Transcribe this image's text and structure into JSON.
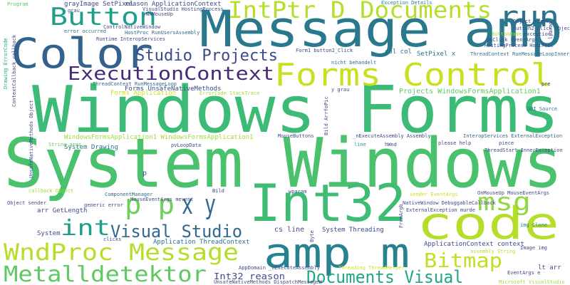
{
  "words": [
    "System Windows",
    "Windows Forms",
    "Message amp",
    "Int32",
    "code",
    "amp m",
    "Color",
    "Forms Control",
    "IntPtr D Documents",
    "run",
    "Button",
    "ExecutionContext",
    "Studio Projects",
    "p p",
    "x y",
    "msg",
    "int",
    "Visual Studio",
    "WndProc Message",
    "Metalldetektor",
    "Bitmap",
    "Documents Visual",
    "Int32 reason",
    "Forms UnsafeNativeMethods",
    "Projects WindowsFormsApplication1",
    "WindowsFormsApplication1 WindowsFormsApplication1",
    "Forms Application",
    "GDI Source",
    "System Drawing",
    "grayImage SetPixel",
    "reason ApplicationContext",
    "Exception Details",
    "VisualStudio HostingProcess",
    "HostProc RunUsersAssembly",
    "Runtime InteropServices",
    "error occurred",
    "SetPixel x",
    "col col",
    "ThreadContext RunMessageLoopInner",
    "HostingProcess HostProc",
    "OnClick EventArgs",
    "Form1 button2_Click",
    "nicht behandelt",
    "ThreadContext RunMessageLoop",
    "ErrorCode StackTrace",
    "MouseButtons",
    "_nExecuteAssembly Assembly",
    "InteropServices ExternalException",
    "please help",
    "piece",
    "ThreadStart InnerException",
    "String args",
    "pvLoopData",
    "line",
    "hWnd",
    "p",
    "callback Object",
    "ComponentManager",
    "MouseEventArgs mevent",
    "Bild",
    "wparam",
    "OnMouseUp MouseEventArgs",
    "NativeWindow DebuggableCallback",
    "ExternalException murde",
    "Object sender",
    "generic error",
    "arr GetLength",
    "cs line",
    "System Threading",
    "System",
    "clicks",
    "Application ThreadContext",
    "ApplicationContext context",
    "Image img",
    "img Clone",
    "assembly String",
    "Threading ThreadHelper",
    "AppDomain _nExecuteAssembly",
    "UnsafeNativeMethods DispatchMessageW",
    "EventArgs e",
    "lt arr",
    "Microsoft VisualStudio",
    "UnsafeNativeMethods Object",
    "ContextCallback callback",
    "Drawing ErrorCode",
    "Bild ArrfoPic",
    "lparam",
    "grau",
    "Program",
    "pre",
    "Object state",
    "button2_Click Object",
    "ButtonBase",
    "exception",
    "y grau",
    "WmMouseUp",
    "ControlNativeWindow",
    "FromArgb",
    "Byte",
    "sender EventArgs"
  ]
}
